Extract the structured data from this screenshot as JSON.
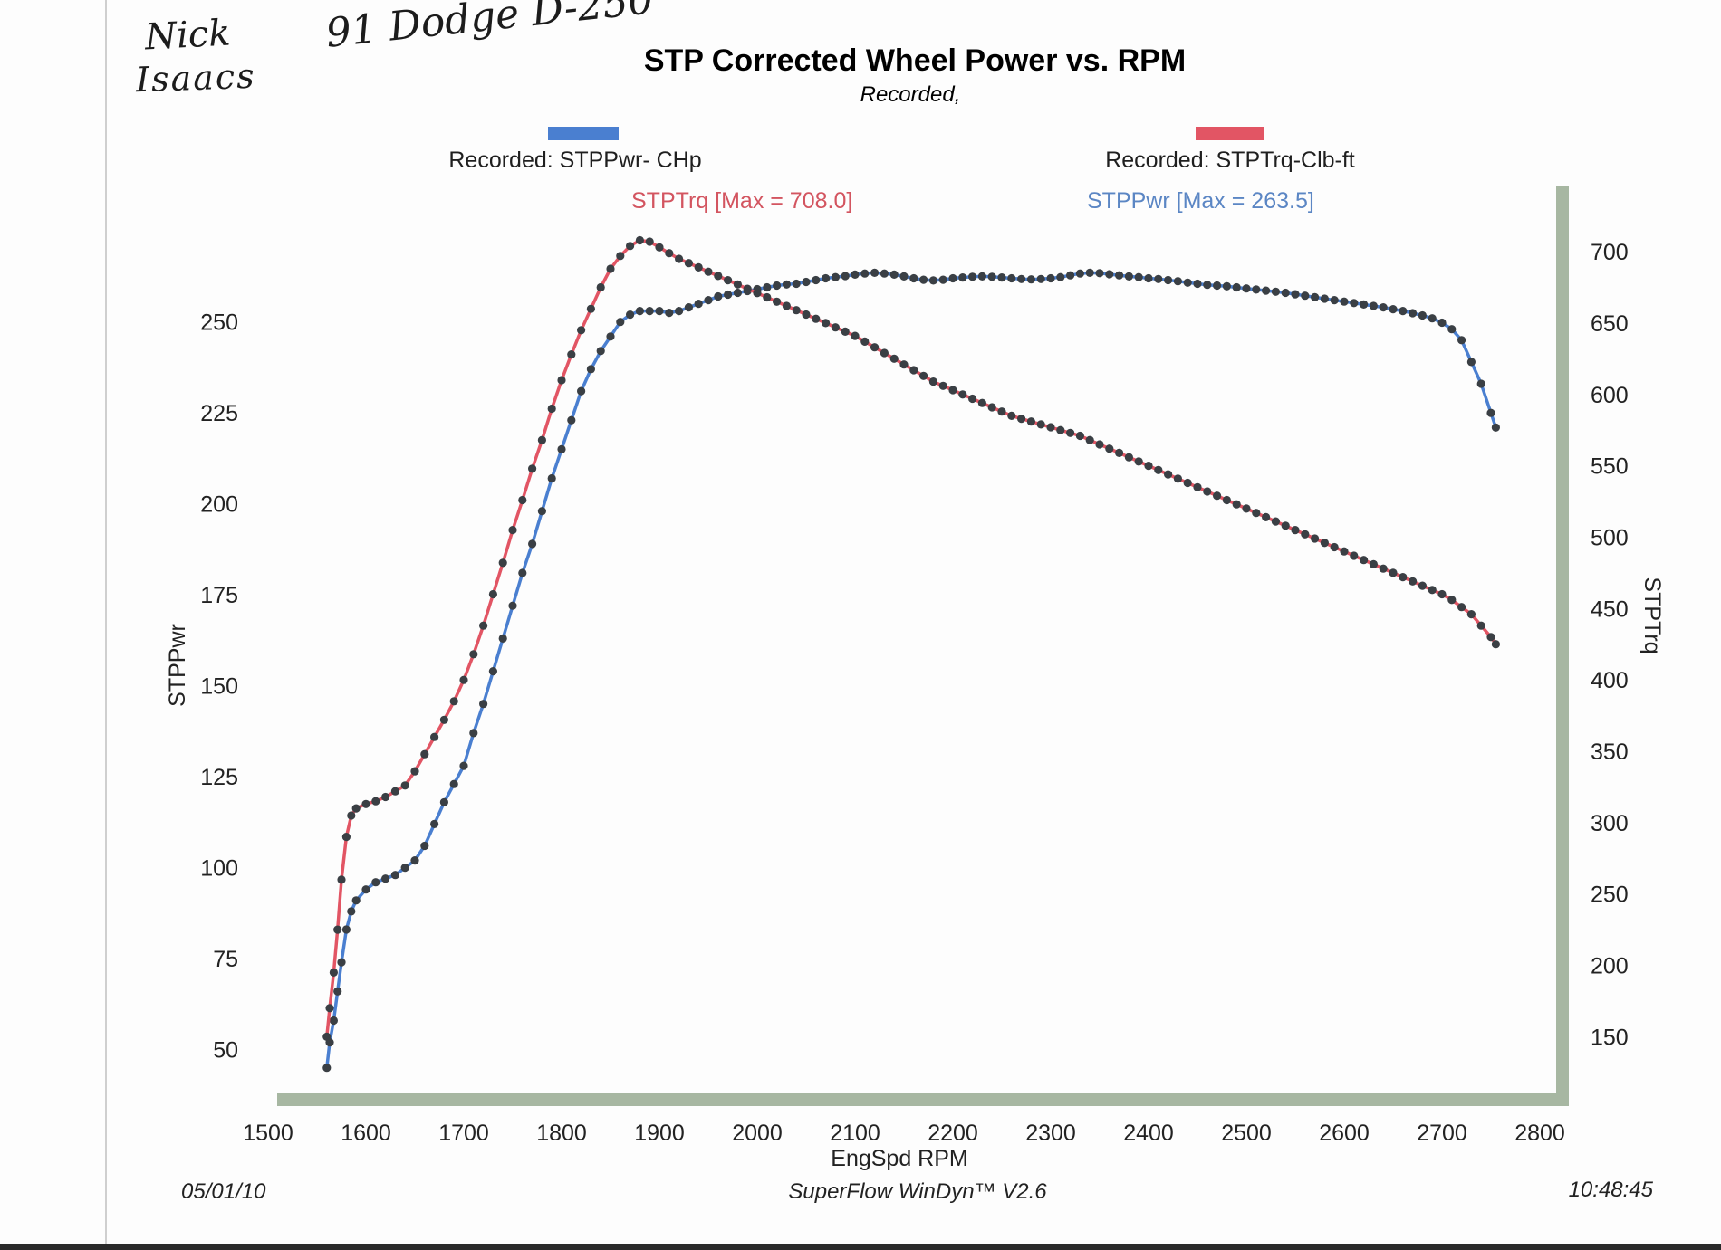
{
  "handwriting": {
    "name_first": "Nick",
    "name_last": "Isaacs",
    "vehicle": "91 Dodge D-250"
  },
  "chart_data": {
    "type": "line",
    "title": "STP Corrected Wheel Power vs. RPM",
    "subtitle": "Recorded,",
    "xlabel": "EngSpd  RPM",
    "y_left_label": "STPPwr",
    "y_right_label": "STPTrq",
    "xlim": [
      1500,
      2800
    ],
    "ylim_left": [
      30,
      285
    ],
    "ylim_right": [
      90,
      740
    ],
    "x_ticks": [
      "1500",
      "1600",
      "1700",
      "1800",
      "1900",
      "2000",
      "2100",
      "2200",
      "2300",
      "2400",
      "2500",
      "2600",
      "2700",
      "2800"
    ],
    "y_left_ticks": [
      "50",
      "75",
      "100",
      "125",
      "150",
      "175",
      "200",
      "225",
      "250"
    ],
    "y_right_ticks": [
      "150",
      "200",
      "250",
      "300",
      "350",
      "400",
      "450",
      "500",
      "550",
      "600",
      "650",
      "700"
    ],
    "legend": [
      {
        "label": "Recorded: STPPwr- CHp",
        "color": "#4a7fd0"
      },
      {
        "label": "Recorded: STPTrq-Clb-ft",
        "color": "#e25564"
      }
    ],
    "annotations": {
      "torque_max": "STPTrq [Max = 708.0]",
      "power_max": "STPPwr [Max = 263.5]"
    },
    "series": [
      {
        "name": "STPPwr",
        "axis": "left",
        "color": "#4a7fd0",
        "x": [
          1560,
          1563,
          1567,
          1571,
          1575,
          1580,
          1585,
          1590,
          1600,
          1610,
          1620,
          1630,
          1640,
          1650,
          1660,
          1670,
          1680,
          1690,
          1700,
          1710,
          1720,
          1730,
          1740,
          1750,
          1760,
          1770,
          1780,
          1790,
          1800,
          1810,
          1820,
          1830,
          1840,
          1850,
          1860,
          1870,
          1880,
          1890,
          1900,
          1910,
          1920,
          1930,
          1940,
          1950,
          1960,
          1970,
          1980,
          1990,
          2000,
          2010,
          2020,
          2030,
          2040,
          2050,
          2060,
          2070,
          2080,
          2090,
          2100,
          2110,
          2120,
          2130,
          2140,
          2150,
          2160,
          2170,
          2180,
          2190,
          2200,
          2210,
          2220,
          2230,
          2240,
          2250,
          2260,
          2270,
          2280,
          2290,
          2300,
          2310,
          2320,
          2330,
          2340,
          2350,
          2360,
          2370,
          2380,
          2390,
          2400,
          2410,
          2420,
          2430,
          2440,
          2450,
          2460,
          2470,
          2480,
          2490,
          2500,
          2510,
          2520,
          2530,
          2540,
          2550,
          2560,
          2570,
          2580,
          2590,
          2600,
          2610,
          2620,
          2630,
          2640,
          2650,
          2660,
          2670,
          2680,
          2690,
          2700,
          2710,
          2720,
          2730,
          2740,
          2750,
          2755
        ],
        "values": [
          45,
          52,
          58,
          66,
          74,
          83,
          88,
          91,
          94,
          96,
          97,
          98,
          100,
          102,
          106,
          112,
          118,
          123,
          128,
          137,
          145,
          154,
          163,
          172,
          181,
          189,
          198,
          207,
          215,
          223,
          231,
          237,
          242,
          246,
          250,
          252,
          253,
          253,
          253,
          252.5,
          253,
          254,
          255,
          256,
          257,
          257.5,
          258,
          258.5,
          259,
          259.5,
          260,
          260.3,
          260.5,
          261,
          261.5,
          262,
          262.3,
          262.6,
          263,
          263.3,
          263.5,
          263.3,
          263,
          262.5,
          262,
          261.6,
          261.4,
          261.6,
          262,
          262.2,
          262.4,
          262.5,
          262.4,
          262.2,
          262,
          261.8,
          261.7,
          261.8,
          262,
          262.3,
          262.8,
          263.3,
          263.5,
          263.4,
          263.1,
          262.8,
          262.5,
          262.3,
          262,
          261.8,
          261.5,
          261.2,
          260.8,
          260.5,
          260.2,
          260,
          259.8,
          259.5,
          259.2,
          258.9,
          258.6,
          258.3,
          258,
          257.6,
          257.2,
          256.8,
          256.4,
          256,
          255.6,
          255.2,
          254.8,
          254.4,
          254,
          253.5,
          253,
          252.4,
          251.8,
          251,
          249.8,
          248,
          245,
          239,
          233,
          225,
          221
        ]
      },
      {
        "name": "STPTrq",
        "axis": "right",
        "color": "#e25564",
        "x": [
          1560,
          1563,
          1567,
          1571,
          1575,
          1580,
          1585,
          1590,
          1600,
          1610,
          1620,
          1630,
          1640,
          1650,
          1660,
          1670,
          1680,
          1690,
          1700,
          1710,
          1720,
          1730,
          1740,
          1750,
          1760,
          1770,
          1780,
          1790,
          1800,
          1810,
          1820,
          1830,
          1840,
          1850,
          1860,
          1870,
          1880,
          1890,
          1900,
          1910,
          1920,
          1930,
          1940,
          1950,
          1960,
          1970,
          1980,
          1990,
          2000,
          2010,
          2020,
          2030,
          2040,
          2050,
          2060,
          2070,
          2080,
          2090,
          2100,
          2110,
          2120,
          2130,
          2140,
          2150,
          2160,
          2170,
          2180,
          2190,
          2200,
          2210,
          2220,
          2230,
          2240,
          2250,
          2260,
          2270,
          2280,
          2290,
          2300,
          2310,
          2320,
          2330,
          2340,
          2350,
          2360,
          2370,
          2380,
          2390,
          2400,
          2410,
          2420,
          2430,
          2440,
          2450,
          2460,
          2470,
          2480,
          2490,
          2500,
          2510,
          2520,
          2530,
          2540,
          2550,
          2560,
          2570,
          2580,
          2590,
          2600,
          2610,
          2620,
          2630,
          2640,
          2650,
          2660,
          2670,
          2680,
          2690,
          2700,
          2710,
          2720,
          2730,
          2740,
          2750,
          2755
        ],
        "values": [
          150,
          170,
          195,
          225,
          260,
          290,
          305,
          310,
          313,
          315,
          318,
          322,
          326,
          336,
          348,
          360,
          372,
          385,
          400,
          418,
          438,
          460,
          482,
          505,
          526,
          548,
          568,
          590,
          610,
          628,
          645,
          660,
          675,
          688,
          697,
          704,
          708,
          707,
          703,
          699,
          695,
          692,
          689,
          686,
          683,
          680,
          677,
          674,
          671,
          668,
          665,
          662,
          659,
          656,
          653,
          650,
          647,
          644,
          641,
          637,
          633,
          629,
          625,
          621,
          617,
          613,
          609,
          606,
          603,
          600,
          597,
          594,
          591,
          588,
          585,
          583,
          581,
          579,
          577,
          575,
          573,
          571,
          568,
          565,
          562,
          559,
          556,
          553,
          550,
          547,
          544,
          541,
          538,
          535,
          532,
          529,
          526,
          523,
          520,
          517,
          514,
          511,
          508,
          505,
          502,
          499,
          496,
          493,
          490,
          487,
          484,
          481,
          478,
          475,
          472,
          469,
          466,
          463,
          460,
          456,
          451,
          446,
          438,
          430,
          425
        ]
      }
    ]
  },
  "footer": {
    "date": "05/01/10",
    "software": "SuperFlow WinDyn™ V2.6",
    "time": "10:48:45"
  }
}
